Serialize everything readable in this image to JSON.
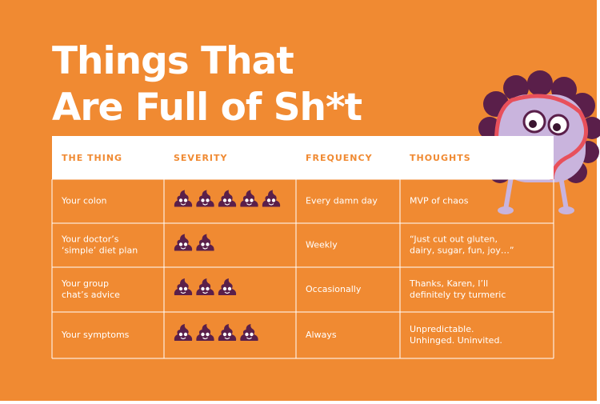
{
  "title": [
    "Things  That",
    "Are Full of Sh*t"
  ],
  "table": {
    "header": [
      "THE THING",
      "SEVERITY",
      "FREQUENCY",
      "THOUGHTS"
    ],
    "rows": [
      {
        "thing": [
          "Your colon"
        ],
        "severity": 5,
        "frequency": "Every damn day",
        "thoughts": [
          "MVP of chaos"
        ]
      },
      {
        "thing": [
          "Your doctor’s",
          "‘simple’ diet plan"
        ],
        "severity": 2,
        "frequency": "Weekly",
        "thoughts": [
          "“Just cut out gluten,",
          "dairy, sugar, fun, joy…”"
        ]
      },
      {
        "thing": [
          "Your group",
          "chat’s advice"
        ],
        "severity": 3,
        "frequency": "Occasionally",
        "thoughts": [
          "Thanks, Karen, I’ll",
          "definitely try turmeric"
        ]
      },
      {
        "thing": [
          "Your symptoms"
        ],
        "severity": 4,
        "frequency": "Always",
        "thoughts": [
          "Unpredictable.",
          "Unhinged. Uninvited."
        ]
      }
    ]
  }
}
